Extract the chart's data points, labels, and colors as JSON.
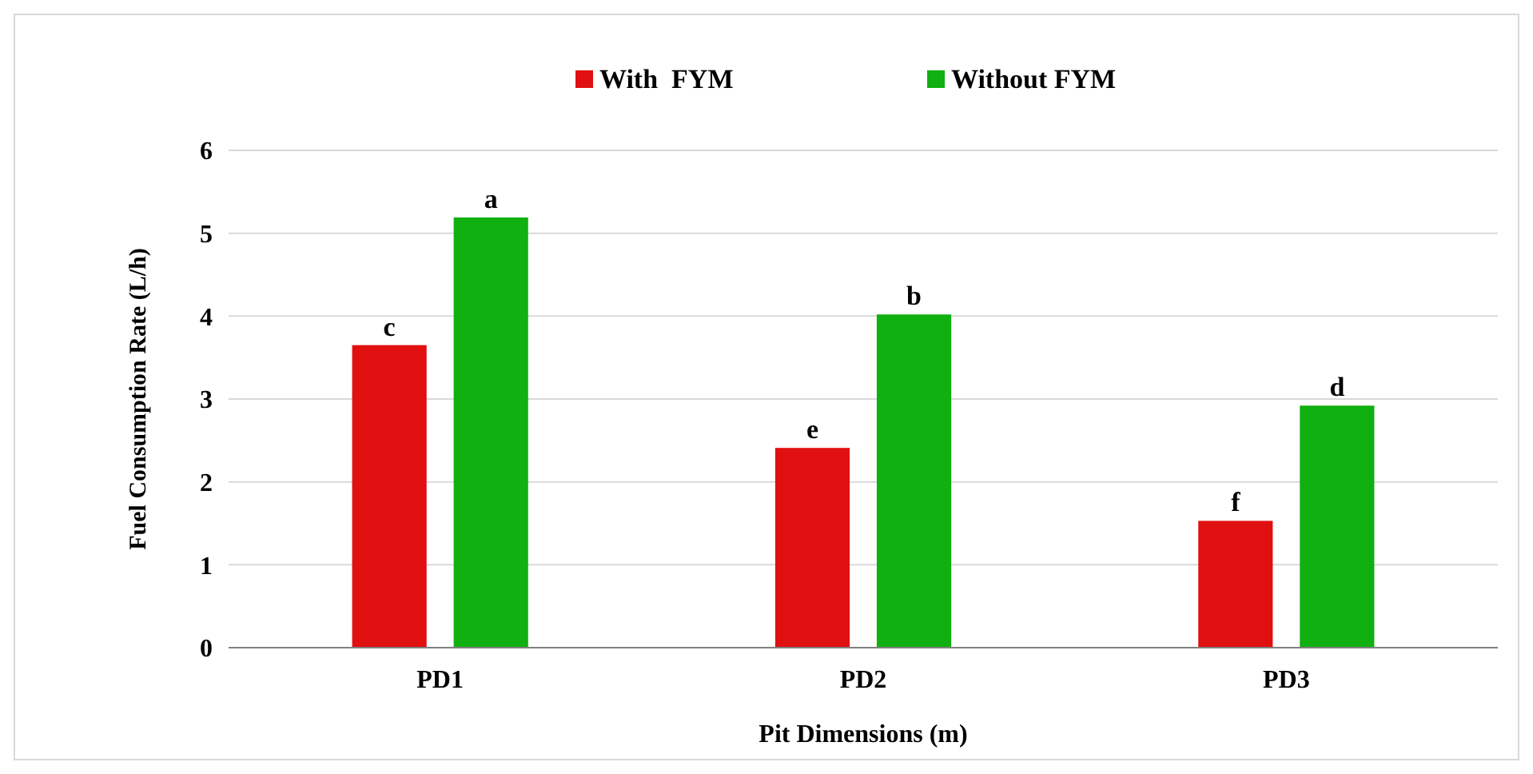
{
  "chart_data": {
    "type": "bar",
    "xlabel": "Pit Dimensions (m)",
    "ylabel": "Fuel Consumption Rate (L/h)",
    "categories": [
      "PD1",
      "PD2",
      "PD3"
    ],
    "series": [
      {
        "name": "With  FYM",
        "color": "#e01010",
        "values": [
          3.65,
          2.41,
          1.53
        ],
        "value_labels": [
          "c",
          "e",
          "f"
        ]
      },
      {
        "name": "Without FYM",
        "color": "#10b010",
        "values": [
          5.19,
          4.02,
          2.92
        ],
        "value_labels": [
          "a",
          "b",
          "d"
        ]
      }
    ],
    "ylim": [
      0,
      6
    ],
    "yticks": [
      0,
      1,
      2,
      3,
      4,
      5,
      6
    ],
    "grid": "y",
    "legend": "top"
  }
}
